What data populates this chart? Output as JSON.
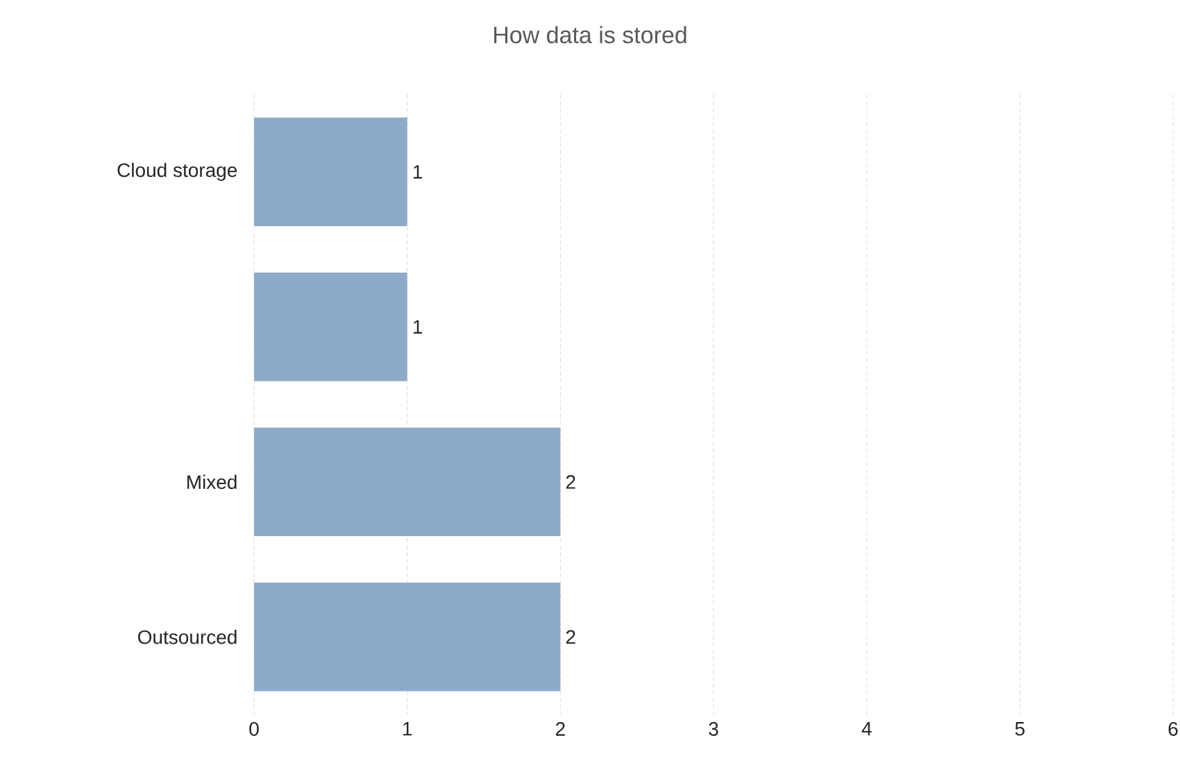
{
  "chart_data": {
    "type": "bar",
    "orientation": "horizontal",
    "title": "How data is stored",
    "categories": [
      "Cloud storage",
      null,
      "Mixed",
      "Outsourced"
    ],
    "values": [
      1,
      1,
      2,
      2
    ],
    "color": "#8eaac9",
    "xlim": [
      0,
      6
    ],
    "xticks": [
      0,
      1,
      2,
      3,
      4,
      5,
      6
    ],
    "grid": "x",
    "data_labels": true
  }
}
